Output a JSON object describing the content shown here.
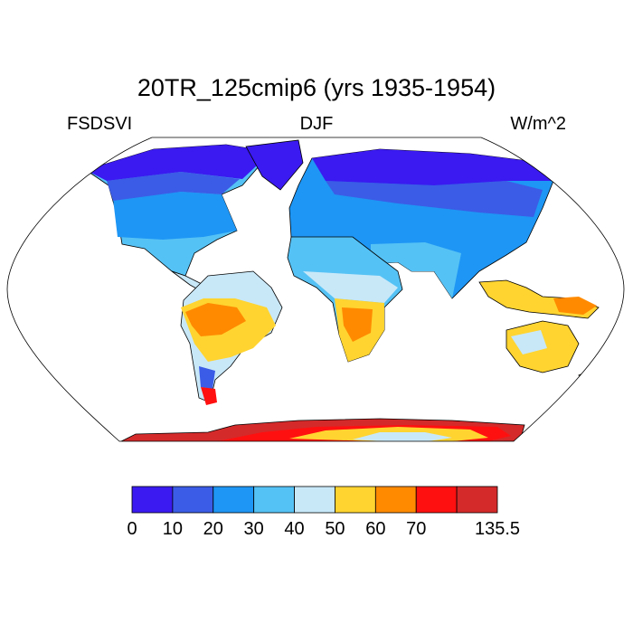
{
  "title": "20TR_125cmip6 (yrs 1935-1954)",
  "left_label": "FSDSVI",
  "center_label": "DJF",
  "right_label": "W/m^2",
  "colorbar": {
    "colors": [
      "#3a1af0",
      "#3b5ce6",
      "#1e96f5",
      "#55c2f5",
      "#c8e8f8",
      "#ffd430",
      "#ff8a00",
      "#ff1010",
      "#d42a2a"
    ],
    "ticks": [
      "0",
      "10",
      "20",
      "30",
      "40",
      "50",
      "60",
      "70",
      "135.5"
    ]
  },
  "chart_data": {
    "type": "map",
    "projection": "Robinson",
    "variable": "FSDSVI",
    "season": "DJF",
    "units": "W/m^2",
    "levels": [
      0,
      10,
      20,
      30,
      40,
      50,
      60,
      70,
      135.5
    ],
    "regions": [
      {
        "name": "Arctic / northern Eurasia & Canada",
        "value_range": [
          0,
          10
        ]
      },
      {
        "name": "Siberia mid latitudes",
        "value_range": [
          10,
          20
        ]
      },
      {
        "name": "USA / Europe / China",
        "value_range": [
          20,
          30
        ]
      },
      {
        "name": "Mexico / North Africa / Middle East",
        "value_range": [
          30,
          40
        ]
      },
      {
        "name": "India / Sahel / northern South America",
        "value_range": [
          40,
          50
        ]
      },
      {
        "name": "Brazil / southern Africa / Australia",
        "value_range": [
          50,
          60
        ]
      },
      {
        "name": "Bolivia / Angola / Indonesia",
        "value_range": [
          60,
          70
        ]
      },
      {
        "name": "Antarctica coast",
        "value_range": [
          70,
          135.5
        ]
      }
    ]
  }
}
